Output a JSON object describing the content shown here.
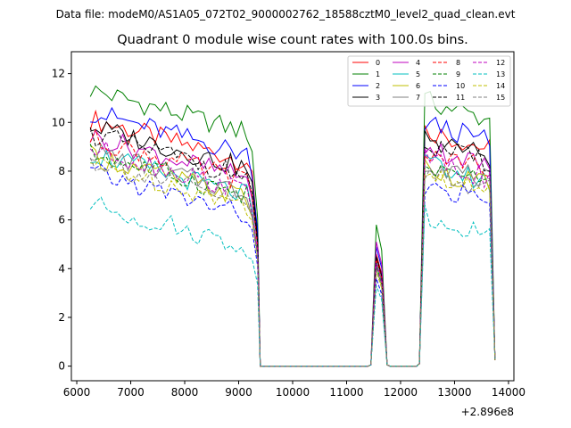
{
  "chart_data": {
    "type": "line",
    "suptitle": "Data file: modeM0/AS1A05_072T02_9000002762_18588cztM0_level2_quad_clean.evt",
    "title": "Quadrant 0 module wise count rates with 100.0s bins.",
    "xlabel": "",
    "ylabel": "",
    "x_offset_label": "+2.896e8",
    "xlim": [
      5900,
      14100
    ],
    "ylim": [
      -0.6,
      12.9
    ],
    "xticks": [
      6000,
      7000,
      8000,
      9000,
      10000,
      11000,
      12000,
      13000,
      14000
    ],
    "yticks": [
      0,
      2,
      4,
      6,
      8,
      10,
      12
    ],
    "legend_position": "top-right",
    "segments": [
      {
        "x_start": 6250,
        "x_end": 9150,
        "step": 100
      },
      {
        "x_start": 9250,
        "x_end": 9350,
        "step": 100
      },
      {
        "x_start": 11450,
        "x_end": 11750,
        "step": 100
      },
      {
        "x_start": 12350,
        "x_end": 13650,
        "step": 100
      },
      {
        "x_start": 13750,
        "x_end": 13750,
        "step": 100
      }
    ],
    "gaps_value": 0,
    "series": [
      {
        "name": "0",
        "color": "#ff0000",
        "dash": "solid",
        "level": 9.3,
        "flare": 4.6
      },
      {
        "name": "1",
        "color": "#008000",
        "dash": "solid",
        "level": 10.5,
        "flare": 5.8
      },
      {
        "name": "2",
        "color": "#0000ff",
        "dash": "solid",
        "level": 9.6,
        "flare": 4.9
      },
      {
        "name": "3",
        "color": "#000000",
        "dash": "solid",
        "level": 9.0,
        "flare": 4.5
      },
      {
        "name": "4",
        "color": "#bf00bf",
        "dash": "solid",
        "level": 8.6,
        "flare": 5.1
      },
      {
        "name": "5",
        "color": "#00bfbf",
        "dash": "solid",
        "level": 7.9,
        "flare": 4.2
      },
      {
        "name": "6",
        "color": "#bfbf00",
        "dash": "solid",
        "level": 7.8,
        "flare": 4.0
      },
      {
        "name": "7",
        "color": "#808080",
        "dash": "solid",
        "level": 8.0,
        "flare": 4.3
      },
      {
        "name": "8",
        "color": "#ff0000",
        "dash": "dashed",
        "level": 8.5,
        "flare": 4.4
      },
      {
        "name": "9",
        "color": "#008000",
        "dash": "dashed",
        "level": 7.9,
        "flare": 4.1
      },
      {
        "name": "10",
        "color": "#0000ff",
        "dash": "dashed",
        "level": 7.1,
        "flare": 3.6
      },
      {
        "name": "11",
        "color": "#000000",
        "dash": "dashed",
        "level": 8.7,
        "flare": 4.5
      },
      {
        "name": "12",
        "color": "#bf00bf",
        "dash": "dashed",
        "level": 8.1,
        "flare": 4.2
      },
      {
        "name": "13",
        "color": "#00bfbf",
        "dash": "dashed",
        "level": 5.8,
        "flare": 3.3
      },
      {
        "name": "14",
        "color": "#bfbf00",
        "dash": "dashed",
        "level": 7.5,
        "flare": 3.9
      },
      {
        "name": "15",
        "color": "#808080",
        "dash": "dashed",
        "level": 7.6,
        "flare": 4.0
      }
    ]
  }
}
